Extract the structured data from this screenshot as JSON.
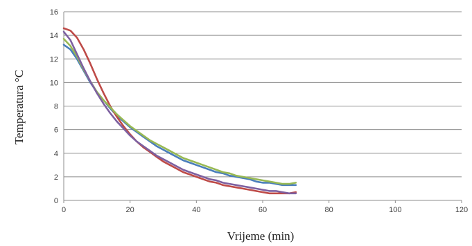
{
  "chart_data": {
    "type": "line",
    "title": "",
    "xlabel": "Vrijeme (min)",
    "ylabel": "Temperatura °C",
    "xlim": [
      0,
      120
    ],
    "ylim": [
      0,
      16
    ],
    "x_ticks": [
      0,
      20,
      40,
      60,
      80,
      100,
      120
    ],
    "y_ticks": [
      0,
      2,
      4,
      6,
      8,
      10,
      12,
      14,
      16
    ],
    "grid": "horizontal",
    "legend": "none",
    "series": [
      {
        "color": "#4a7ebb",
        "points": [
          [
            0,
            13.2
          ],
          [
            2,
            12.8
          ],
          [
            4,
            12.0
          ],
          [
            6,
            11.0
          ],
          [
            8,
            10.0
          ],
          [
            10,
            9.2
          ],
          [
            12,
            8.5
          ],
          [
            14,
            7.8
          ],
          [
            16,
            7.2
          ],
          [
            18,
            6.7
          ],
          [
            20,
            6.2
          ],
          [
            22,
            5.8
          ],
          [
            24,
            5.4
          ],
          [
            26,
            5.0
          ],
          [
            28,
            4.6
          ],
          [
            30,
            4.3
          ],
          [
            32,
            4.0
          ],
          [
            34,
            3.7
          ],
          [
            36,
            3.4
          ],
          [
            38,
            3.2
          ],
          [
            40,
            3.0
          ],
          [
            42,
            2.8
          ],
          [
            44,
            2.6
          ],
          [
            46,
            2.4
          ],
          [
            48,
            2.3
          ],
          [
            50,
            2.1
          ],
          [
            52,
            2.0
          ],
          [
            54,
            1.9
          ],
          [
            56,
            1.8
          ],
          [
            58,
            1.6
          ],
          [
            60,
            1.5
          ],
          [
            62,
            1.5
          ],
          [
            64,
            1.4
          ],
          [
            66,
            1.3
          ],
          [
            68,
            1.3
          ],
          [
            70,
            1.3
          ]
        ]
      },
      {
        "color": "#be4b48",
        "points": [
          [
            0,
            14.6
          ],
          [
            2,
            14.4
          ],
          [
            4,
            13.8
          ],
          [
            6,
            12.8
          ],
          [
            8,
            11.6
          ],
          [
            10,
            10.3
          ],
          [
            12,
            9.1
          ],
          [
            14,
            8.0
          ],
          [
            16,
            7.1
          ],
          [
            18,
            6.3
          ],
          [
            20,
            5.6
          ],
          [
            22,
            5.0
          ],
          [
            24,
            4.5
          ],
          [
            26,
            4.1
          ],
          [
            28,
            3.7
          ],
          [
            30,
            3.3
          ],
          [
            32,
            3.0
          ],
          [
            34,
            2.7
          ],
          [
            36,
            2.4
          ],
          [
            38,
            2.2
          ],
          [
            40,
            2.0
          ],
          [
            42,
            1.8
          ],
          [
            44,
            1.6
          ],
          [
            46,
            1.5
          ],
          [
            48,
            1.3
          ],
          [
            50,
            1.2
          ],
          [
            52,
            1.1
          ],
          [
            54,
            1.0
          ],
          [
            56,
            0.9
          ],
          [
            58,
            0.8
          ],
          [
            60,
            0.7
          ],
          [
            62,
            0.6
          ],
          [
            64,
            0.6
          ],
          [
            66,
            0.6
          ],
          [
            68,
            0.6
          ],
          [
            70,
            0.7
          ]
        ]
      },
      {
        "color": "#98b954",
        "points": [
          [
            0,
            13.7
          ],
          [
            2,
            13.1
          ],
          [
            4,
            12.2
          ],
          [
            6,
            11.1
          ],
          [
            8,
            10.1
          ],
          [
            10,
            9.2
          ],
          [
            12,
            8.5
          ],
          [
            14,
            7.9
          ],
          [
            16,
            7.3
          ],
          [
            18,
            6.8
          ],
          [
            20,
            6.3
          ],
          [
            22,
            5.9
          ],
          [
            24,
            5.5
          ],
          [
            26,
            5.1
          ],
          [
            28,
            4.8
          ],
          [
            30,
            4.5
          ],
          [
            32,
            4.2
          ],
          [
            34,
            3.9
          ],
          [
            36,
            3.6
          ],
          [
            38,
            3.4
          ],
          [
            40,
            3.2
          ],
          [
            42,
            3.0
          ],
          [
            44,
            2.8
          ],
          [
            46,
            2.6
          ],
          [
            48,
            2.4
          ],
          [
            50,
            2.3
          ],
          [
            52,
            2.1
          ],
          [
            54,
            2.0
          ],
          [
            56,
            1.9
          ],
          [
            58,
            1.8
          ],
          [
            60,
            1.7
          ],
          [
            62,
            1.6
          ],
          [
            64,
            1.5
          ],
          [
            66,
            1.4
          ],
          [
            68,
            1.4
          ],
          [
            70,
            1.5
          ]
        ]
      },
      {
        "color": "#7d60a0",
        "points": [
          [
            0,
            14.3
          ],
          [
            2,
            13.6
          ],
          [
            4,
            12.4
          ],
          [
            6,
            11.2
          ],
          [
            8,
            10.1
          ],
          [
            10,
            9.1
          ],
          [
            12,
            8.2
          ],
          [
            14,
            7.4
          ],
          [
            16,
            6.7
          ],
          [
            18,
            6.1
          ],
          [
            20,
            5.5
          ],
          [
            22,
            5.0
          ],
          [
            24,
            4.6
          ],
          [
            26,
            4.2
          ],
          [
            28,
            3.8
          ],
          [
            30,
            3.5
          ],
          [
            32,
            3.2
          ],
          [
            34,
            2.9
          ],
          [
            36,
            2.6
          ],
          [
            38,
            2.4
          ],
          [
            40,
            2.2
          ],
          [
            42,
            2.0
          ],
          [
            44,
            1.8
          ],
          [
            46,
            1.7
          ],
          [
            48,
            1.5
          ],
          [
            50,
            1.4
          ],
          [
            52,
            1.3
          ],
          [
            54,
            1.2
          ],
          [
            56,
            1.1
          ],
          [
            58,
            1.0
          ],
          [
            60,
            0.9
          ],
          [
            62,
            0.8
          ],
          [
            64,
            0.8
          ],
          [
            66,
            0.7
          ],
          [
            68,
            0.6
          ],
          [
            70,
            0.6
          ]
        ]
      }
    ]
  }
}
